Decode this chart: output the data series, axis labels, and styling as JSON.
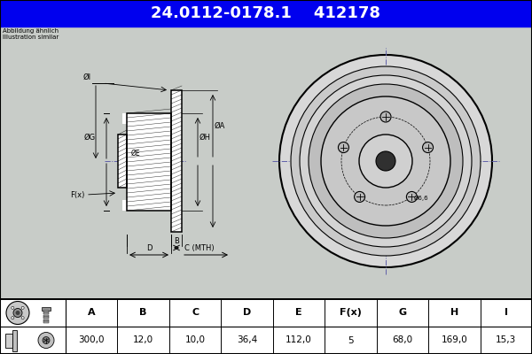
{
  "title_part1": "24.0112-0178.1",
  "title_part2": "412178",
  "title_bg": "#0000EE",
  "title_fg": "#FFFFFF",
  "subtitle_line1": "Abbildung ähnlich",
  "subtitle_line2": "Illustration similar",
  "bg_color": "#C8CCC8",
  "draw_bg": "#C8CCC8",
  "table_bg": "#FFFFFF",
  "table_headers": [
    "A",
    "B",
    "C",
    "D",
    "E",
    "F(x)",
    "G",
    "H",
    "I"
  ],
  "table_values": [
    "300,0",
    "12,0",
    "10,0",
    "36,4",
    "112,0",
    "5",
    "68,0",
    "169,0",
    "15,3"
  ],
  "hole_label": "Ø6,6"
}
